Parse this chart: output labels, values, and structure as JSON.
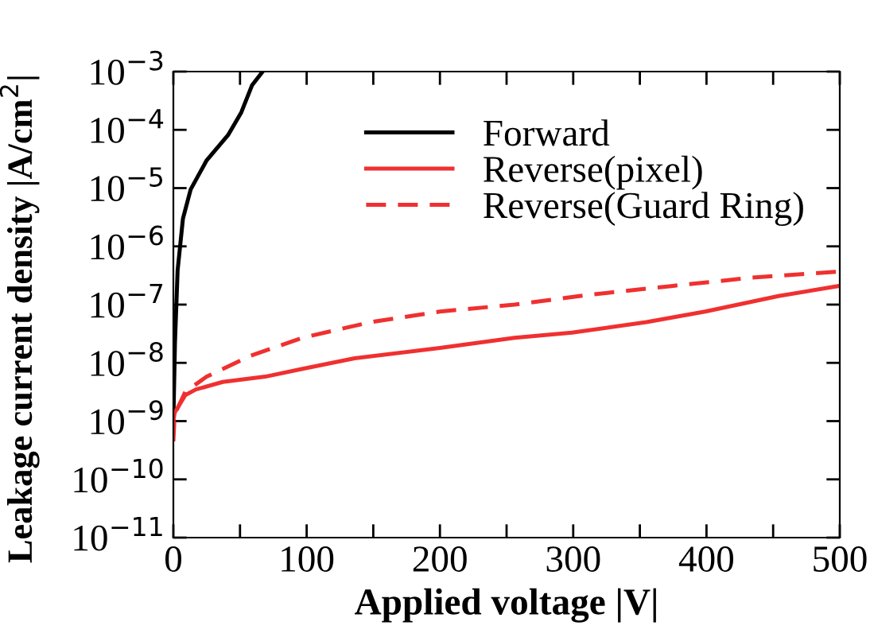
{
  "chart_data": {
    "type": "line",
    "xlabel": "Applied voltage |V|",
    "ylabel": "Leakage current density |A/cm$^{2}$|",
    "log": "y",
    "xlim": [
      0,
      500
    ],
    "ylim": [
      1e-11,
      0.001
    ],
    "xticks": [
      0,
      {
        "value": 50,
        "label": null
      },
      100,
      {
        "value": 150,
        "label": null
      },
      200,
      {
        "value": 250,
        "label": null
      },
      300,
      {
        "value": 350,
        "label": null
      },
      400,
      {
        "value": 450,
        "label": null
      },
      500
    ],
    "yticks": [
      {
        "value": 1e-11,
        "label": "10$^{−11}$"
      },
      {
        "value": 1e-10,
        "label": "10$^{−10}$"
      },
      {
        "value": 1e-09,
        "label": "10$^{−9}$"
      },
      {
        "value": 1e-08,
        "label": "10$^{−8}$"
      },
      {
        "value": 1e-07,
        "label": "10$^{−7}$"
      },
      {
        "value": 1e-06,
        "label": "10$^{−6}$"
      },
      {
        "value": 1e-05,
        "label": "10$^{−5}$"
      },
      {
        "value": 0.0001,
        "label": "10$^{−4}$"
      },
      {
        "value": 0.001,
        "label": "10$^{−3}$"
      }
    ],
    "grid": false,
    "legend": "top right",
    "series": [
      {
        "name": "Forward",
        "color": "#000000",
        "line_style": "solid",
        "x": [
          0,
          1.2,
          3.2,
          7.2,
          13,
          25,
          41,
          51,
          59,
          67
        ],
        "values": [
          1e-09,
          2.2e-08,
          3.9e-07,
          3e-06,
          9.5e-06,
          3e-05,
          8.1e-05,
          0.0002,
          0.00058,
          0.001
        ]
      },
      {
        "name": "Reverse(pixel)",
        "color": "#f03030",
        "line_style": "solid",
        "x": [
          0,
          1,
          9,
          17,
          37,
          69,
          97,
          136,
          200,
          256,
          299,
          355,
          399,
          454,
          500
        ],
        "values": [
          1e-09,
          1.4e-09,
          2.8e-09,
          3.5e-09,
          4.7e-09,
          5.8e-09,
          7.9e-09,
          1.2e-08,
          1.8e-08,
          2.7e-08,
          3.3e-08,
          5e-08,
          7.6e-08,
          1.4e-07,
          2.1e-07
        ]
      },
      {
        "name": "Reverse(Guard Ring)",
        "color": "#f03030",
        "line_style": "dashed",
        "x": [
          0,
          1,
          9,
          25,
          57,
          97,
          148,
          200,
          256,
          315,
          375,
          434,
          500
        ],
        "values": [
          4.5e-10,
          1.3e-09,
          3.2e-09,
          5.8e-09,
          1.3e-08,
          2.7e-08,
          5e-08,
          7.6e-08,
          1e-07,
          1.5e-07,
          2.1e-07,
          2.9e-07,
          3.7e-07
        ]
      }
    ]
  }
}
